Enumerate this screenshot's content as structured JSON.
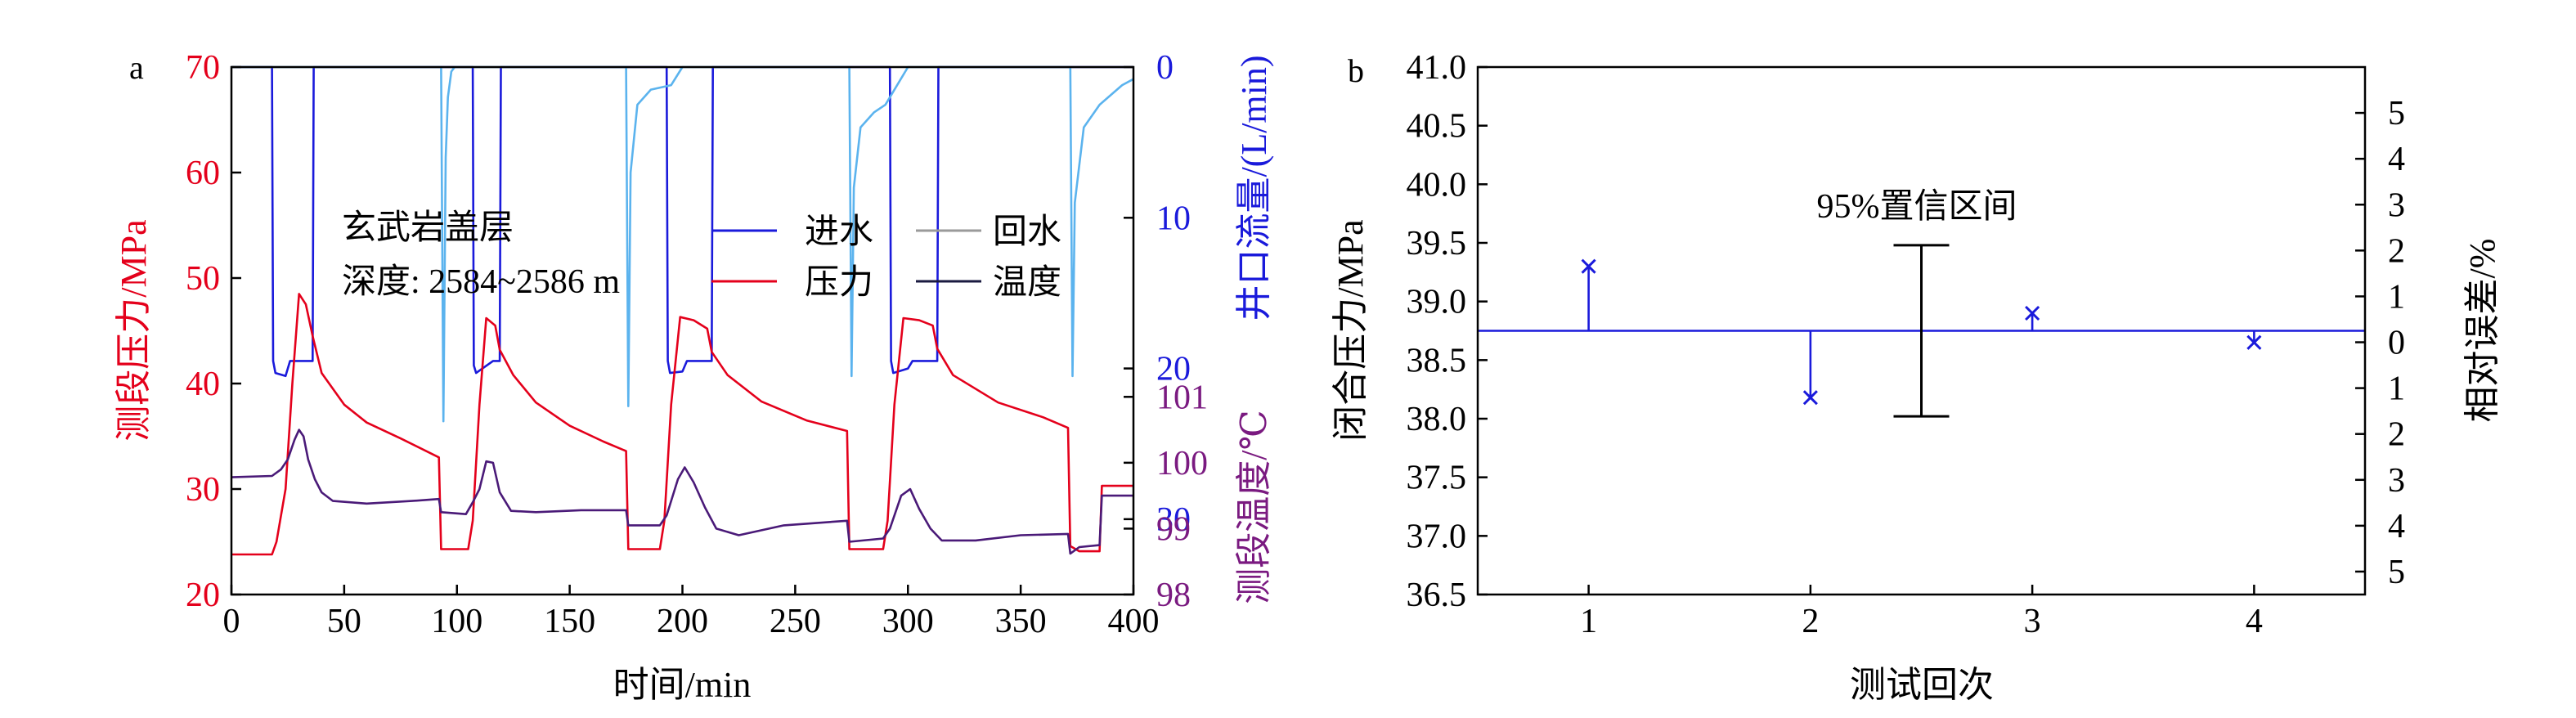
{
  "chart_data": [
    {
      "panel_label": "a",
      "type": "line",
      "xlabel": "时间/min",
      "x_ticks": [
        0,
        50,
        100,
        150,
        200,
        250,
        300,
        350,
        400
      ],
      "xlim": [
        0,
        400
      ],
      "left_axis": {
        "label": "测段压力/MPa",
        "ylim": [
          20,
          70
        ],
        "ticks": [
          20,
          30,
          40,
          50,
          60,
          70
        ],
        "color": "#e4001b"
      },
      "right_top_axis": {
        "label": "井口流量/(L/min)",
        "ylim": [
          0,
          35
        ],
        "ticks": [
          0,
          10,
          20,
          30
        ],
        "inverted": true,
        "color": "#1a1adb"
      },
      "right_bottom_axis": {
        "label": "测段温度/℃",
        "ylim": [
          98,
          101.5
        ],
        "ticks": [
          98,
          99,
          100,
          101
        ],
        "color": "#7a1a80"
      },
      "annotations": [
        "玄武岩盖层",
        "深度: 2584~2586 m"
      ],
      "legend": [
        "进水",
        "回水",
        "压力",
        "温度"
      ],
      "series": [
        {
          "name": "进水",
          "axis": "flow",
          "color": "#1a1adb",
          "points": [
            [
              0,
              0
            ],
            [
              18,
              0
            ],
            [
              18.5,
              19.5
            ],
            [
              19.5,
              20.3
            ],
            [
              24,
              20.5
            ],
            [
              26,
              19.5
            ],
            [
              36,
              19.5
            ],
            [
              36.5,
              0
            ],
            [
              107,
              0
            ],
            [
              107.5,
              19.8
            ],
            [
              108.5,
              20.3
            ],
            [
              116,
              19.5
            ],
            [
              119,
              19.5
            ],
            [
              119.5,
              0
            ],
            [
              193,
              0
            ],
            [
              193.5,
              19.5
            ],
            [
              194.5,
              20.3
            ],
            [
              200,
              20.2
            ],
            [
              202,
              19.5
            ],
            [
              213,
              19.5
            ],
            [
              213.5,
              0
            ],
            [
              292,
              0
            ],
            [
              292.5,
              19.5
            ],
            [
              293.5,
              20.3
            ],
            [
              300,
              20.0
            ],
            [
              302,
              19.5
            ],
            [
              313,
              19.5
            ],
            [
              313.5,
              0
            ],
            [
              400,
              0
            ]
          ]
        },
        {
          "name": "回水",
          "axis": "flow",
          "color": "#5bb3ee",
          "points": [
            [
              0,
              0
            ],
            [
              93,
              0
            ],
            [
              94,
              23.5
            ],
            [
              95,
              6
            ],
            [
              96,
              2
            ],
            [
              97.5,
              0.3
            ],
            [
              99,
              0
            ],
            [
              175,
              0
            ],
            [
              176,
              22.5
            ],
            [
              177,
              7
            ],
            [
              180,
              2.5
            ],
            [
              186,
              1.5
            ],
            [
              195,
              1.2
            ],
            [
              200,
              0
            ],
            [
              274,
              0
            ],
            [
              275,
              20.5
            ],
            [
              276,
              8
            ],
            [
              279,
              4
            ],
            [
              285,
              3
            ],
            [
              290,
              2.5
            ],
            [
              300,
              0
            ],
            [
              372,
              0
            ],
            [
              373,
              20.5
            ],
            [
              374,
              9
            ],
            [
              378,
              4
            ],
            [
              385,
              2.5
            ],
            [
              395,
              1.2
            ],
            [
              400,
              0.8
            ]
          ]
        },
        {
          "name": "压力",
          "axis": "pressure",
          "color": "#e4001b",
          "points": [
            [
              0,
              23.8
            ],
            [
              18,
              23.8
            ],
            [
              20,
              25
            ],
            [
              24,
              30
            ],
            [
              27,
              40
            ],
            [
              30,
              48.5
            ],
            [
              33,
              47.5
            ],
            [
              36,
              44.5
            ],
            [
              40,
              41
            ],
            [
              50,
              38
            ],
            [
              60,
              36.3
            ],
            [
              75,
              34.8
            ],
            [
              92,
              33
            ],
            [
              93,
              24.3
            ],
            [
              105,
              24.3
            ],
            [
              107,
              27
            ],
            [
              110,
              38
            ],
            [
              113,
              46.2
            ],
            [
              117,
              45.5
            ],
            [
              119,
              43.2
            ],
            [
              125,
              40.8
            ],
            [
              135,
              38.2
            ],
            [
              150,
              36
            ],
            [
              165,
              34.5
            ],
            [
              175,
              33.6
            ],
            [
              176,
              24.3
            ],
            [
              190,
              24.3
            ],
            [
              192,
              27
            ],
            [
              195,
              38
            ],
            [
              199,
              46.3
            ],
            [
              205,
              46
            ],
            [
              211,
              45.2
            ],
            [
              213,
              43
            ],
            [
              220,
              40.8
            ],
            [
              235,
              38.3
            ],
            [
              255,
              36.5
            ],
            [
              273,
              35.5
            ],
            [
              274,
              24.3
            ],
            [
              289,
              24.3
            ],
            [
              291,
              27
            ],
            [
              294,
              38
            ],
            [
              298,
              46.2
            ],
            [
              305,
              46
            ],
            [
              311,
              45.5
            ],
            [
              313,
              43.3
            ],
            [
              320,
              40.8
            ],
            [
              340,
              38.2
            ],
            [
              360,
              36.8
            ],
            [
              371,
              35.8
            ],
            [
              372,
              24.6
            ],
            [
              376,
              24.1
            ],
            [
              385,
              24.1
            ],
            [
              386,
              30.3
            ],
            [
              400,
              30.3
            ]
          ]
        },
        {
          "name": "温度",
          "axis": "temperature",
          "color": "#4a1a78",
          "points": [
            [
              0,
              99.78
            ],
            [
              18,
              99.8
            ],
            [
              22,
              99.9
            ],
            [
              25,
              100.05
            ],
            [
              28,
              100.35
            ],
            [
              30,
              100.5
            ],
            [
              32,
              100.4
            ],
            [
              34,
              100.05
            ],
            [
              37,
              99.75
            ],
            [
              40,
              99.55
            ],
            [
              45,
              99.42
            ],
            [
              60,
              99.38
            ],
            [
              80,
              99.42
            ],
            [
              92,
              99.45
            ],
            [
              93,
              99.25
            ],
            [
              104,
              99.22
            ],
            [
              107,
              99.4
            ],
            [
              110,
              99.6
            ],
            [
              113,
              100.02
            ],
            [
              116,
              100.0
            ],
            [
              119,
              99.55
            ],
            [
              124,
              99.27
            ],
            [
              135,
              99.25
            ],
            [
              155,
              99.28
            ],
            [
              175,
              99.28
            ],
            [
              176,
              99.05
            ],
            [
              190,
              99.05
            ],
            [
              193,
              99.2
            ],
            [
              198,
              99.75
            ],
            [
              201,
              99.93
            ],
            [
              205,
              99.7
            ],
            [
              210,
              99.32
            ],
            [
              215,
              99.0
            ],
            [
              225,
              98.9
            ],
            [
              245,
              99.05
            ],
            [
              273,
              99.12
            ],
            [
              274,
              98.8
            ],
            [
              289,
              98.85
            ],
            [
              292,
              99.0
            ],
            [
              297,
              99.5
            ],
            [
              301,
              99.6
            ],
            [
              305,
              99.3
            ],
            [
              310,
              99.0
            ],
            [
              315,
              98.82
            ],
            [
              330,
              98.82
            ],
            [
              350,
              98.9
            ],
            [
              371,
              98.92
            ],
            [
              372,
              98.62
            ],
            [
              376,
              98.72
            ],
            [
              385,
              98.75
            ],
            [
              386,
              99.5
            ],
            [
              400,
              99.5
            ]
          ]
        }
      ]
    },
    {
      "panel_label": "b",
      "type": "scatter",
      "xlabel": "测试回次",
      "ylabel": "闭合压力/MPa",
      "y2label": "相对误差/%",
      "xlim": [
        0.5,
        4.5
      ],
      "x_ticks": [
        1,
        2,
        3,
        4
      ],
      "ylim": [
        36.5,
        41.0
      ],
      "y_ticks": [
        "36.5",
        "37.0",
        "37.5",
        "38.0",
        "38.5",
        "39.0",
        "39.5",
        "40.0",
        "40.5",
        "41.0"
      ],
      "y2_ticks": [
        "5",
        "4",
        "3",
        "2",
        "1",
        "0",
        "1",
        "2",
        "3",
        "4",
        "5"
      ],
      "y2lim": [
        -5.5,
        6
      ],
      "mean": 38.75,
      "color": "#1a1adb",
      "x": [
        1,
        2,
        3,
        4
      ],
      "y": [
        39.3,
        38.18,
        38.9,
        38.65
      ],
      "confidence_interval": {
        "label": "95%置信区间",
        "x": 2.5,
        "lower": 38.02,
        "upper": 39.48
      }
    }
  ]
}
